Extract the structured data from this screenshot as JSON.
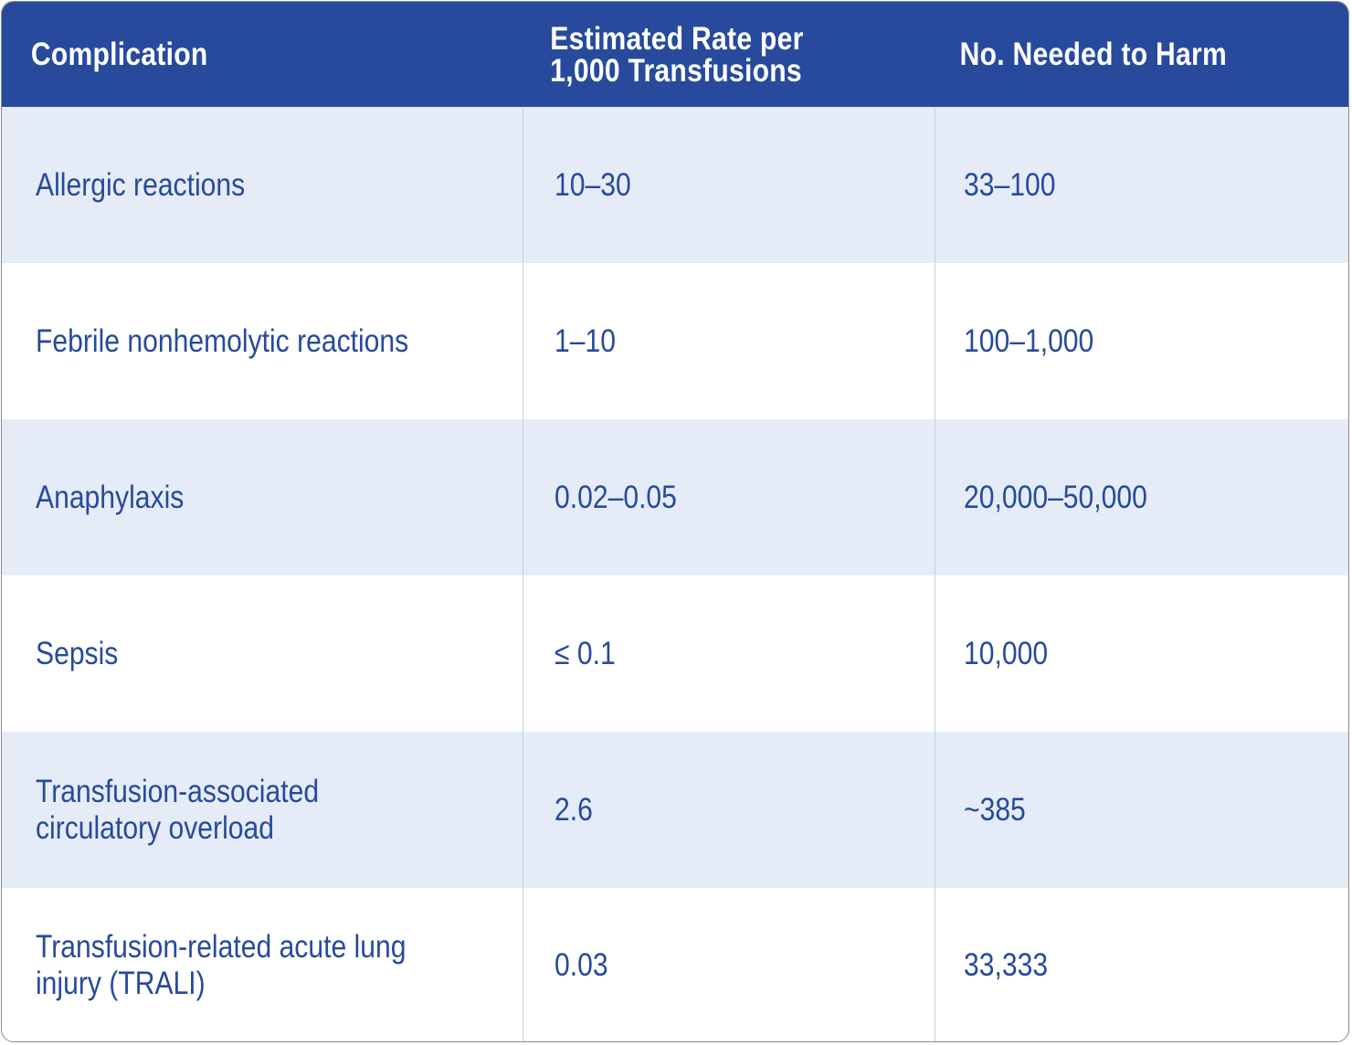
{
  "table": {
    "headers": {
      "complication": "Complication",
      "rate": "Estimated Rate per\n1,000 Transfusions",
      "nnh": "No. Needed to Harm"
    },
    "rows": [
      {
        "complication": "Allergic reactions",
        "rate": "10–30",
        "nnh": "33–100"
      },
      {
        "complication": "Febrile nonhemolytic reactions",
        "rate": "1–10",
        "nnh": "100–1,000"
      },
      {
        "complication": "Anaphylaxis",
        "rate": "0.02–0.05",
        "nnh": "20,000–50,000"
      },
      {
        "complication": "Sepsis",
        "rate": "≤ 0.1",
        "nnh": "10,000"
      },
      {
        "complication": "Transfusion-associated\ncirculatory overload",
        "rate": "2.6",
        "nnh": "~385"
      },
      {
        "complication": "Transfusion-related acute lung\ninjury (TRALI)",
        "rate": "0.03",
        "nnh": "33,333"
      }
    ]
  },
  "colors": {
    "header_bg": "#274a9c",
    "header_text": "#ffffff",
    "body_text": "#274a9c",
    "stripe_bg": "#e5ecf7"
  }
}
